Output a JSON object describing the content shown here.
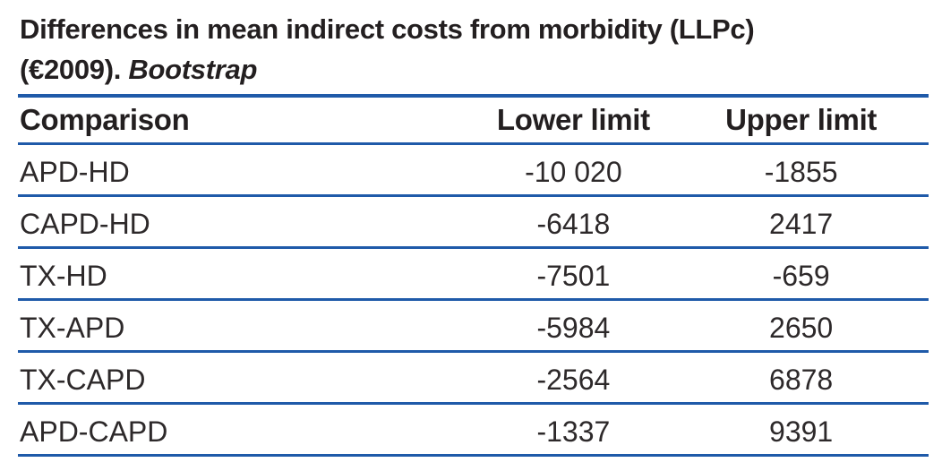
{
  "title": {
    "line1": "Differences in mean indirect costs from morbidity (LLPc)",
    "line2_prefix": "(€2009). ",
    "line2_emphasis": "Bootstrap"
  },
  "table": {
    "columns": [
      "Comparison",
      "Lower limit",
      "Upper limit"
    ],
    "fields": [
      "comparison",
      "lower",
      "upper"
    ],
    "rows": [
      {
        "comparison": "APD-HD",
        "lower": "-10 020",
        "upper": "-1855"
      },
      {
        "comparison": "CAPD-HD",
        "lower": "-6418",
        "upper": "2417"
      },
      {
        "comparison": "TX-HD",
        "lower": "-7501",
        "upper": "-659"
      },
      {
        "comparison": "TX-APD",
        "lower": "-5984",
        "upper": "2650"
      },
      {
        "comparison": "TX-CAPD",
        "lower": "-2564",
        "upper": "6878"
      },
      {
        "comparison": "APD-CAPD",
        "lower": "-1337",
        "upper": "9391"
      }
    ]
  },
  "colors": {
    "rule_blue": "#1f5aa9",
    "text_black": "#231f20"
  },
  "chart_data": {
    "type": "table",
    "title": "Differences in mean indirect costs from morbidity (LLPc) (€2009). Bootstrap",
    "columns": [
      "Comparison",
      "Lower limit",
      "Upper limit"
    ],
    "rows": [
      [
        "APD-HD",
        -10020,
        -1855
      ],
      [
        "CAPD-HD",
        -6418,
        2417
      ],
      [
        "TX-HD",
        -7501,
        -659
      ],
      [
        "TX-APD",
        -5984,
        2650
      ],
      [
        "TX-CAPD",
        -2564,
        6878
      ],
      [
        "APD-CAPD",
        -1337,
        9391
      ]
    ]
  }
}
